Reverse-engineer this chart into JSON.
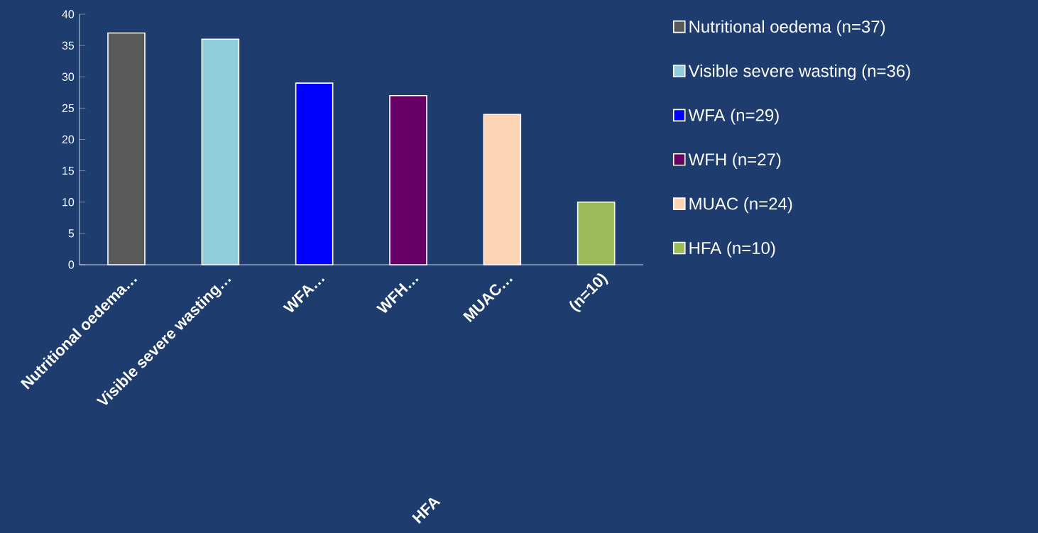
{
  "chart_data": {
    "type": "bar",
    "categories": [
      "Nutritional oedema…",
      "Visible severe wasting…",
      "WFA…",
      "WFH…",
      "MUAC…",
      "(n=10)"
    ],
    "series": [
      {
        "name": "Nutritional oedema (n=37)",
        "color": "#595959",
        "values": [
          37,
          null,
          null,
          null,
          null,
          null
        ]
      },
      {
        "name": "Visible severe wasting (n=36)",
        "color": "#92cddc",
        "values": [
          null,
          36,
          null,
          null,
          null,
          null
        ]
      },
      {
        "name": "WFA (n=29)",
        "color": "#0000ff",
        "values": [
          null,
          null,
          29,
          null,
          null,
          null
        ]
      },
      {
        "name": "WFH (n=27)",
        "color": "#660066",
        "values": [
          null,
          null,
          null,
          27,
          null,
          null
        ]
      },
      {
        "name": "MUAC (n=24)",
        "color": "#fcd5b5",
        "values": [
          null,
          null,
          null,
          null,
          24,
          null
        ]
      },
      {
        "name": "HFA (n=10)",
        "color": "#9bbb59",
        "values": [
          null,
          null,
          null,
          null,
          null,
          10
        ]
      }
    ],
    "ylim": [
      0,
      40
    ],
    "yticks": [
      0,
      5,
      10,
      15,
      20,
      25,
      30,
      35,
      40
    ],
    "legend": "right",
    "annotations": [
      "HFA"
    ]
  }
}
